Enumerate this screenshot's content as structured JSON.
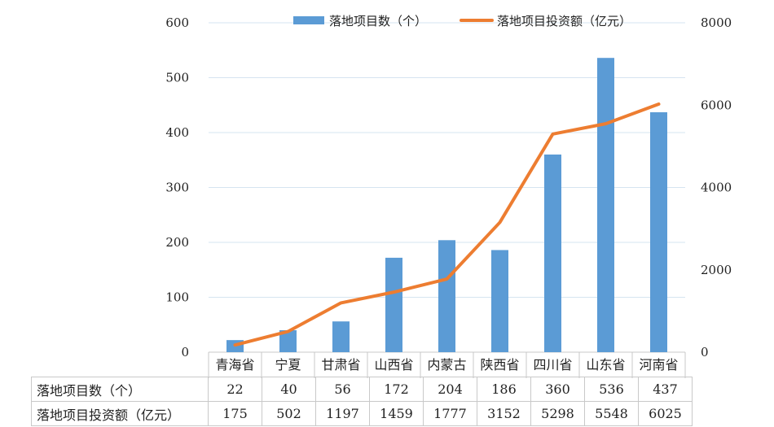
{
  "chart_data": {
    "type": "bar",
    "combo": "bar+line",
    "categories": [
      "青海省",
      "宁夏",
      "甘肃省",
      "山西省",
      "内蒙古",
      "陕西省",
      "四川省",
      "山东省",
      "河南省"
    ],
    "series": [
      {
        "name": "落地项目数（个）",
        "type": "bar",
        "axis": "left",
        "color": "#5B9BD5",
        "values": [
          22,
          40,
          56,
          172,
          204,
          186,
          360,
          536,
          437
        ]
      },
      {
        "name": "落地项目投资额（亿元）",
        "type": "line",
        "axis": "right",
        "color": "#ED7D31",
        "values": [
          175,
          502,
          1197,
          1459,
          1777,
          3152,
          5298,
          5548,
          6025
        ]
      }
    ],
    "y_left": {
      "min": 0,
      "max": 600,
      "ticks": [
        0,
        100,
        200,
        300,
        400,
        500,
        600
      ]
    },
    "y_right": {
      "min": 0,
      "max": 8000,
      "ticks": [
        0,
        2000,
        4000,
        6000,
        8000
      ]
    },
    "grid": true,
    "legend": "top-center",
    "table": {
      "row_labels": [
        "落地项目数（个）",
        "落地项目投资额（亿元）"
      ],
      "rows": [
        [
          "22",
          "40",
          "56",
          "172",
          "204",
          "186",
          "360",
          "536",
          "437"
        ],
        [
          "175",
          "502",
          "1197",
          "1459",
          "1777",
          "3152",
          "5298",
          "5548",
          "6025"
        ]
      ]
    }
  }
}
